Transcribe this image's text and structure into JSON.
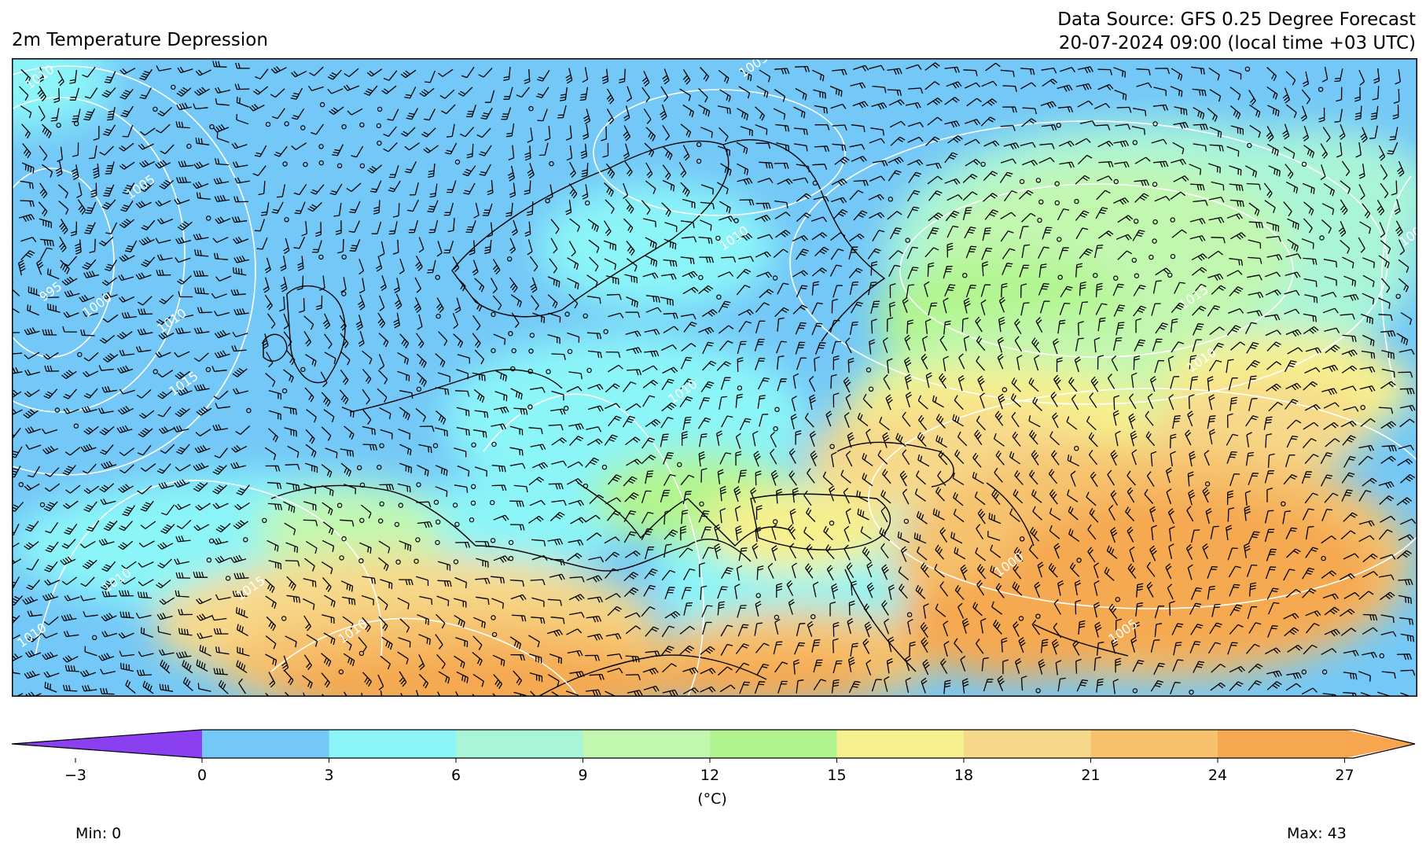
{
  "header": {
    "title": "2m Temperature Depression",
    "source_line": "Data Source: GFS 0.25 Degree Forecast",
    "time_line": "20-07-2024 09:00 (local time +03 UTC)"
  },
  "map": {
    "variable": "2m Temperature Depression",
    "contour_labels": [
      "1010",
      "1005",
      "995",
      "1000",
      "1010",
      "1015",
      "1015",
      "1010",
      "1005",
      "1010",
      "1010",
      "1015",
      "1010",
      "1000",
      "1005",
      "1010",
      "1005",
      "1010"
    ],
    "colors": {
      "contour": "#ffffff",
      "barb": "#000000",
      "coast": "#000000"
    }
  },
  "colorbar": {
    "unit_label": "(°C)",
    "ticks": [
      "−3",
      "0",
      "3",
      "6",
      "9",
      "12",
      "15",
      "18",
      "21",
      "24",
      "27"
    ],
    "colors": [
      "#8a3ff0",
      "#74c8f7",
      "#8bf5f8",
      "#aaf5d8",
      "#c2f7b0",
      "#b2f590",
      "#f7f08e",
      "#f7d98b",
      "#f6c26e",
      "#f5a951",
      "#f7a54f"
    ]
  },
  "stats": {
    "min": "Min: 0",
    "max": "Max: 43"
  }
}
